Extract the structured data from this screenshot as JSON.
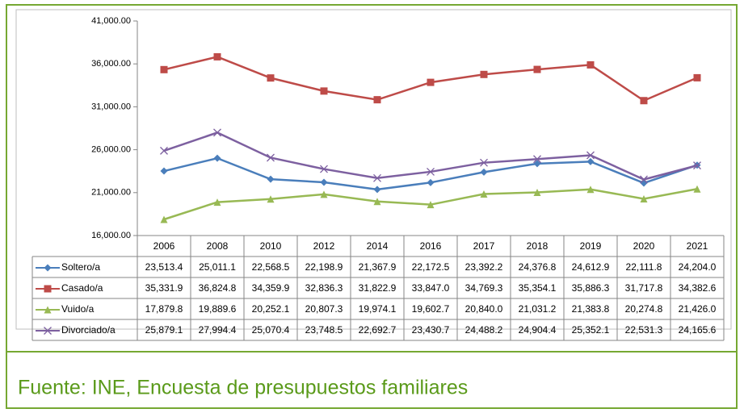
{
  "chart_data": {
    "type": "line",
    "categories": [
      "2006",
      "2008",
      "2010",
      "2012",
      "2014",
      "2016",
      "2017",
      "2018",
      "2019",
      "2020",
      "2021"
    ],
    "ylim": [
      16000,
      41000
    ],
    "yticks": [
      {
        "value": 16000,
        "label": "16,000.00"
      },
      {
        "value": 21000,
        "label": "21,000.00"
      },
      {
        "value": 26000,
        "label": "26,000.00"
      },
      {
        "value": 31000,
        "label": "31,000.00"
      },
      {
        "value": 36000,
        "label": "36,000.00"
      },
      {
        "value": 41000,
        "label": "41,000.00"
      }
    ],
    "series": [
      {
        "name": "Soltero/a",
        "color": "#4a7ebb",
        "marker": "diamond",
        "values": [
          23513.4,
          25011.1,
          22568.5,
          22198.9,
          21367.9,
          22172.5,
          23392.2,
          24376.8,
          24612.9,
          22111.8,
          24204.0
        ],
        "value_labels": [
          "23,513.4",
          "25,011.1",
          "22,568.5",
          "22,198.9",
          "21,367.9",
          "22,172.5",
          "23,392.2",
          "24,376.8",
          "24,612.9",
          "22,111.8",
          "24,204.0"
        ]
      },
      {
        "name": "Casado/a",
        "color": "#be4b48",
        "marker": "square",
        "values": [
          35331.9,
          36824.8,
          34359.9,
          32836.3,
          31822.9,
          33847.0,
          34769.3,
          35354.1,
          35886.3,
          31717.8,
          34382.6
        ],
        "value_labels": [
          "35,331.9",
          "36,824.8",
          "34,359.9",
          "32,836.3",
          "31,822.9",
          "33,847.0",
          "34,769.3",
          "35,354.1",
          "35,886.3",
          "31,717.8",
          "34,382.6"
        ]
      },
      {
        "name": "Vuido/a",
        "color": "#98b954",
        "marker": "triangle",
        "values": [
          17879.8,
          19889.6,
          20252.1,
          20807.3,
          19974.1,
          19602.7,
          20840.0,
          21031.2,
          21383.8,
          20274.8,
          21426.0
        ],
        "value_labels": [
          "17,879.8",
          "19,889.6",
          "20,252.1",
          "20,807.3",
          "19,974.1",
          "19,602.7",
          "20,840.0",
          "21,031.2",
          "21,383.8",
          "20,274.8",
          "21,426.0"
        ]
      },
      {
        "name": "Divorciado/a",
        "color": "#7d60a0",
        "marker": "x",
        "values": [
          25879.1,
          27994.4,
          25070.4,
          23748.5,
          22692.7,
          23430.7,
          24488.2,
          24904.4,
          25352.1,
          22531.3,
          24165.6
        ],
        "value_labels": [
          "25,879.1",
          "27,994.4",
          "25,070.4",
          "23,748.5",
          "22,692.7",
          "23,430.7",
          "24,488.2",
          "24,904.4",
          "25,352.1",
          "22,531.3",
          "24,165.6"
        ]
      }
    ]
  },
  "source": "Fuente: INE, Encuesta de presupuestos familiares"
}
